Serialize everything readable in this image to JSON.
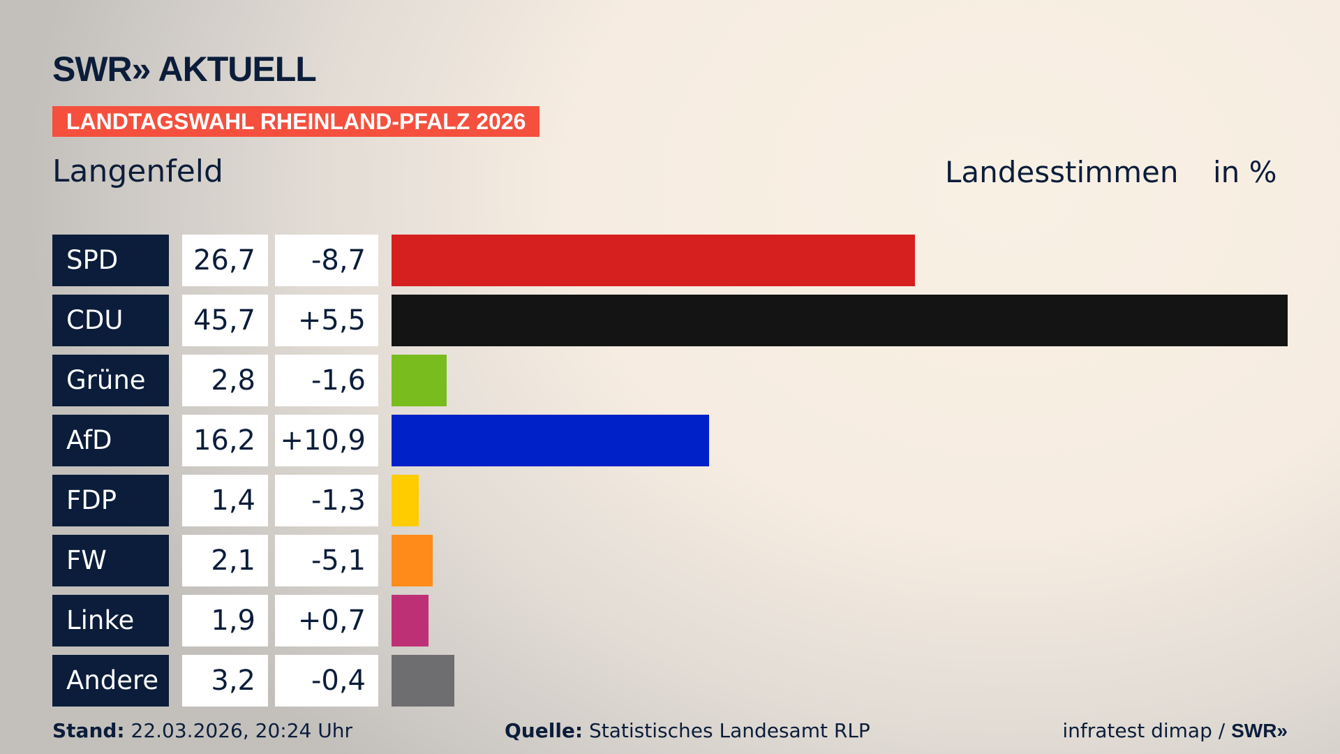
{
  "header": {
    "logo": "SWR» AKTUELL",
    "banner": "LANDTAGSWAHL RHEINLAND-PFALZ 2026",
    "region": "Langenfeld",
    "measure": "Landesstimmen",
    "unit": "in %"
  },
  "chart_data": {
    "type": "bar",
    "orientation": "horizontal",
    "xlim": [
      0,
      45.7
    ],
    "categories": [
      "SPD",
      "CDU",
      "Grüne",
      "AfD",
      "FDP",
      "FW",
      "Linke",
      "Andere"
    ],
    "values": [
      26.7,
      45.7,
      2.8,
      16.2,
      1.4,
      2.1,
      1.9,
      3.2
    ],
    "value_labels": [
      "26,7",
      "45,7",
      "2,8",
      "16,2",
      "1,4",
      "2,1",
      "1,9",
      "3,2"
    ],
    "change_labels": [
      "-8,7",
      "+5,5",
      "-1,6",
      "+10,9",
      "-1,3",
      "-5,1",
      "+0,7",
      "-0,4"
    ],
    "colors": [
      "#d61f1f",
      "#141414",
      "#78bc1e",
      "#0021c8",
      "#ffcc00",
      "#ff8c1a",
      "#be3075",
      "#6e6e70"
    ]
  },
  "footer": {
    "stand_label": "Stand:",
    "stand_value": " 22.03.2026, 20:24 Uhr",
    "source_label": "Quelle:",
    "source_value": " Statistisches Landesamt RLP",
    "credit": "infratest dimap / ",
    "credit_logo": "SWR»"
  }
}
